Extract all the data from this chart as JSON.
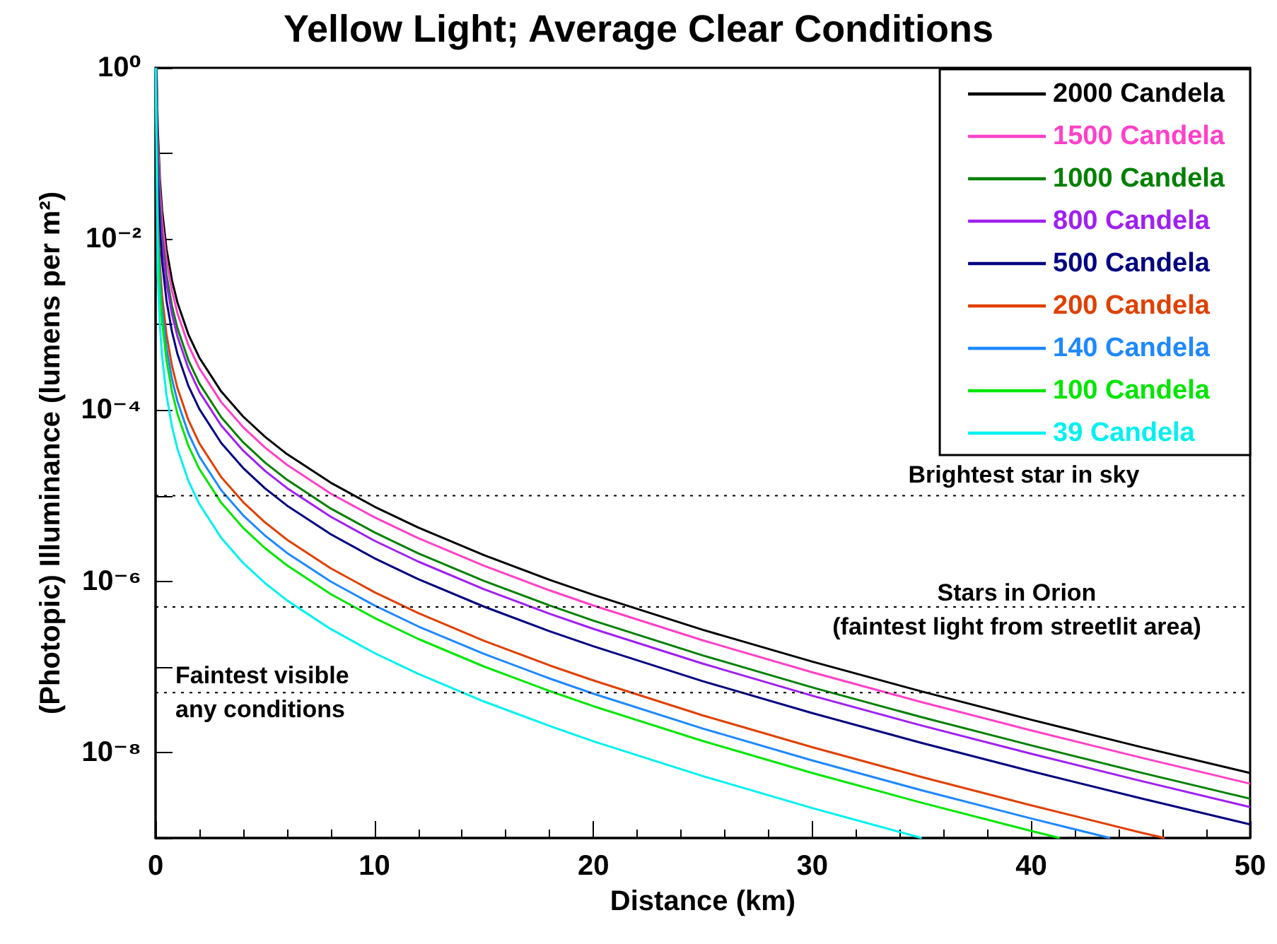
{
  "chart_data": {
    "type": "line",
    "title": "Yellow Light; Average Clear Conditions",
    "xlabel": "Distance (km)",
    "ylabel": "(Photopic) Illuminance (lumens per m²)",
    "log": "y",
    "grid": false,
    "legend": "top right",
    "marker": "none",
    "line_style": "solid",
    "xlim": [
      0,
      50
    ],
    "xticks": [
      0,
      10,
      20,
      30,
      40,
      50
    ],
    "ylim": [
      1e-09,
      1
    ],
    "yticks": [
      {
        "value": 1,
        "label": "10⁰"
      },
      {
        "value": 0.1,
        "label": null
      },
      {
        "value": 0.01,
        "label": "10⁻²"
      },
      {
        "value": 0.001,
        "label": null
      },
      {
        "value": 0.0001,
        "label": "10⁻⁴"
      },
      {
        "value": 1e-05,
        "label": null
      },
      {
        "value": 1e-06,
        "label": "10⁻⁶"
      },
      {
        "value": 1e-07,
        "label": null
      },
      {
        "value": 1e-08,
        "label": "10⁻⁸"
      },
      {
        "value": 1e-09,
        "label": null
      }
    ],
    "ref_lines": [
      {
        "axis": "y",
        "value": 1e-05,
        "label": "Brightest star in sky",
        "line_style": "dotted",
        "color": "#000000"
      },
      {
        "axis": "y",
        "value": 5e-07,
        "label": "Stars in Orion\n(faintest light from streetlit area)",
        "line_style": "dotted",
        "color": "#000000"
      },
      {
        "axis": "y",
        "value": 5e-08,
        "label": "Faintest visible\nany conditions",
        "line_style": "dotted",
        "color": "#000000"
      }
    ],
    "series": [
      {
        "name": "2000 Candela",
        "color": "#000000",
        "x": [
          0.045,
          0.1,
          0.2,
          0.3,
          0.5,
          0.75,
          1,
          1.5,
          2,
          3,
          4,
          5,
          6,
          8,
          10,
          12,
          15,
          18,
          20,
          25,
          30,
          35,
          40,
          45,
          50
        ],
        "values": [
          1,
          0.198,
          0.049,
          0.0216,
          0.00762,
          0.0033,
          0.00181,
          0.000766,
          0.00041,
          0.000165,
          8.42e-05,
          4.88e-05,
          3.07e-05,
          1.42e-05,
          7.45e-06,
          4.25e-06,
          2.02e-06,
          1.04e-06,
          6.94e-07,
          2.71e-07,
          1.15e-07,
          5.16e-08,
          2.41e-08,
          1.16e-08,
          5.75e-09
        ]
      },
      {
        "name": "1500 Candela",
        "color": "#ff40c8",
        "x": [
          0.039,
          0.1,
          0.2,
          0.3,
          0.5,
          0.75,
          1,
          1.5,
          2,
          3,
          4,
          5,
          6,
          8,
          10,
          12,
          15,
          18,
          20,
          25,
          30,
          35,
          40,
          45,
          50
        ],
        "values": [
          1,
          0.149,
          0.0368,
          0.0162,
          0.00571,
          0.00248,
          0.00136,
          0.000575,
          0.000308,
          0.000124,
          6.32e-05,
          3.66e-05,
          2.3e-05,
          1.06e-05,
          5.59e-06,
          3.19e-06,
          1.52e-06,
          7.83e-07,
          5.21e-07,
          2.04e-07,
          8.63e-08,
          3.87e-08,
          1.81e-08,
          8.72e-09,
          4.31e-09
        ]
      },
      {
        "name": "1000 Candela",
        "color": "#008000",
        "x": [
          0.032,
          0.1,
          0.2,
          0.3,
          0.5,
          0.75,
          1,
          1.5,
          2,
          3,
          4,
          5,
          6,
          8,
          10,
          12,
          15,
          18,
          20,
          25,
          30,
          35,
          40,
          45,
          50
        ],
        "values": [
          1,
          0.099,
          0.0245,
          0.0108,
          0.00381,
          0.00165,
          0.000906,
          0.000383,
          0.000205,
          8.26e-05,
          4.21e-05,
          2.44e-05,
          1.54e-05,
          7.09e-06,
          3.73e-06,
          2.12e-06,
          1.01e-06,
          5.22e-07,
          3.47e-07,
          1.36e-07,
          5.75e-08,
          2.58e-08,
          1.21e-08,
          5.82e-09,
          2.88e-09
        ]
      },
      {
        "name": "800 Candela",
        "color": "#a020f0",
        "x": [
          0.028,
          0.1,
          0.2,
          0.3,
          0.5,
          0.75,
          1,
          1.5,
          2,
          3,
          4,
          5,
          6,
          8,
          10,
          12,
          15,
          18,
          20,
          25,
          30,
          35,
          40,
          45,
          50
        ],
        "values": [
          1,
          0.0792,
          0.0196,
          0.00863,
          0.00305,
          0.00132,
          0.000725,
          0.000307,
          0.000164,
          6.61e-05,
          3.37e-05,
          1.95e-05,
          1.23e-05,
          5.68e-06,
          2.98e-06,
          1.7e-06,
          8.09e-07,
          4.18e-07,
          2.78e-07,
          1.09e-07,
          4.6e-08,
          2.06e-08,
          9.65e-09,
          4.65e-09,
          2.3e-09
        ]
      },
      {
        "name": "500 Candela",
        "color": "#000080",
        "x": [
          0.022,
          0.1,
          0.2,
          0.3,
          0.5,
          0.75,
          1,
          1.5,
          2,
          3,
          4,
          5,
          6,
          8,
          10,
          12,
          15,
          18,
          20,
          25,
          30,
          35,
          40,
          45,
          50
        ],
        "values": [
          1,
          0.0495,
          0.0123,
          0.0054,
          0.0019,
          0.000826,
          0.000453,
          0.000192,
          0.000103,
          4.13e-05,
          2.11e-05,
          1.22e-05,
          7.68e-06,
          3.55e-06,
          1.86e-06,
          1.06e-06,
          5.06e-07,
          2.61e-07,
          1.74e-07,
          6.79e-08,
          2.88e-08,
          1.29e-08,
          6.03e-09,
          2.91e-09,
          1.44e-09
        ]
      },
      {
        "name": "200 Candela",
        "color": "#e04000",
        "x": [
          0.014,
          0.1,
          0.2,
          0.3,
          0.5,
          0.75,
          1,
          1.5,
          2,
          3,
          4,
          5,
          6,
          8,
          10,
          12,
          15,
          18,
          20,
          25,
          30,
          35,
          40,
          45,
          46.1
        ],
        "values": [
          1,
          0.0198,
          0.0049,
          0.00216,
          0.000762,
          0.00033,
          0.000181,
          7.66e-05,
          4.1e-05,
          1.65e-05,
          8.42e-06,
          4.88e-06,
          3.07e-06,
          1.42e-06,
          7.45e-07,
          4.25e-07,
          2.02e-07,
          1.04e-07,
          6.94e-08,
          2.71e-08,
          1.15e-08,
          5.16e-09,
          2.41e-09,
          1.16e-09,
          1e-09
        ]
      },
      {
        "name": "140 Candela",
        "color": "#1e88ff",
        "x": [
          0.012,
          0.1,
          0.2,
          0.3,
          0.5,
          0.75,
          1,
          1.5,
          2,
          3,
          4,
          5,
          6,
          8,
          10,
          12,
          15,
          18,
          20,
          25,
          30,
          35,
          40,
          43.6
        ],
        "values": [
          1,
          0.0139,
          0.00343,
          0.00151,
          0.000533,
          0.000231,
          0.000127,
          5.36e-05,
          2.87e-05,
          1.16e-05,
          5.9e-06,
          3.42e-06,
          2.15e-06,
          9.93e-07,
          5.22e-07,
          2.97e-07,
          1.42e-07,
          7.31e-08,
          4.86e-08,
          1.9e-08,
          8.05e-09,
          3.61e-09,
          1.69e-09,
          1e-09
        ]
      },
      {
        "name": "100 Candela",
        "color": "#00e600",
        "x": [
          0.01,
          0.1,
          0.2,
          0.3,
          0.5,
          0.75,
          1,
          1.5,
          2,
          3,
          4,
          5,
          6,
          8,
          10,
          12,
          15,
          18,
          20,
          25,
          30,
          35,
          40,
          41.3
        ],
        "values": [
          1,
          0.0099,
          0.00245,
          0.00108,
          0.000381,
          0.000165,
          9.06e-05,
          3.83e-05,
          2.05e-05,
          8.26e-06,
          4.21e-06,
          2.44e-06,
          1.54e-06,
          7.09e-07,
          3.73e-07,
          2.12e-07,
          1.01e-07,
          5.22e-08,
          3.47e-08,
          1.36e-08,
          5.75e-09,
          2.58e-09,
          1.21e-09,
          1e-09
        ]
      },
      {
        "name": "39 Candela",
        "color": "#00f0f0",
        "x": [
          0.0062,
          0.1,
          0.2,
          0.3,
          0.5,
          0.75,
          1,
          1.5,
          2,
          3,
          4,
          5,
          6,
          8,
          10,
          12,
          15,
          18,
          20,
          25,
          30,
          35
        ],
        "values": [
          1,
          0.00386,
          0.000956,
          0.000421,
          0.000149,
          6.44e-05,
          3.53e-05,
          1.49e-05,
          8e-06,
          3.22e-06,
          1.64e-06,
          9.52e-07,
          5.99e-07,
          2.77e-07,
          1.45e-07,
          8.28e-08,
          3.94e-08,
          2.04e-08,
          1.35e-08,
          5.29e-09,
          2.24e-09,
          1e-09
        ]
      }
    ]
  }
}
